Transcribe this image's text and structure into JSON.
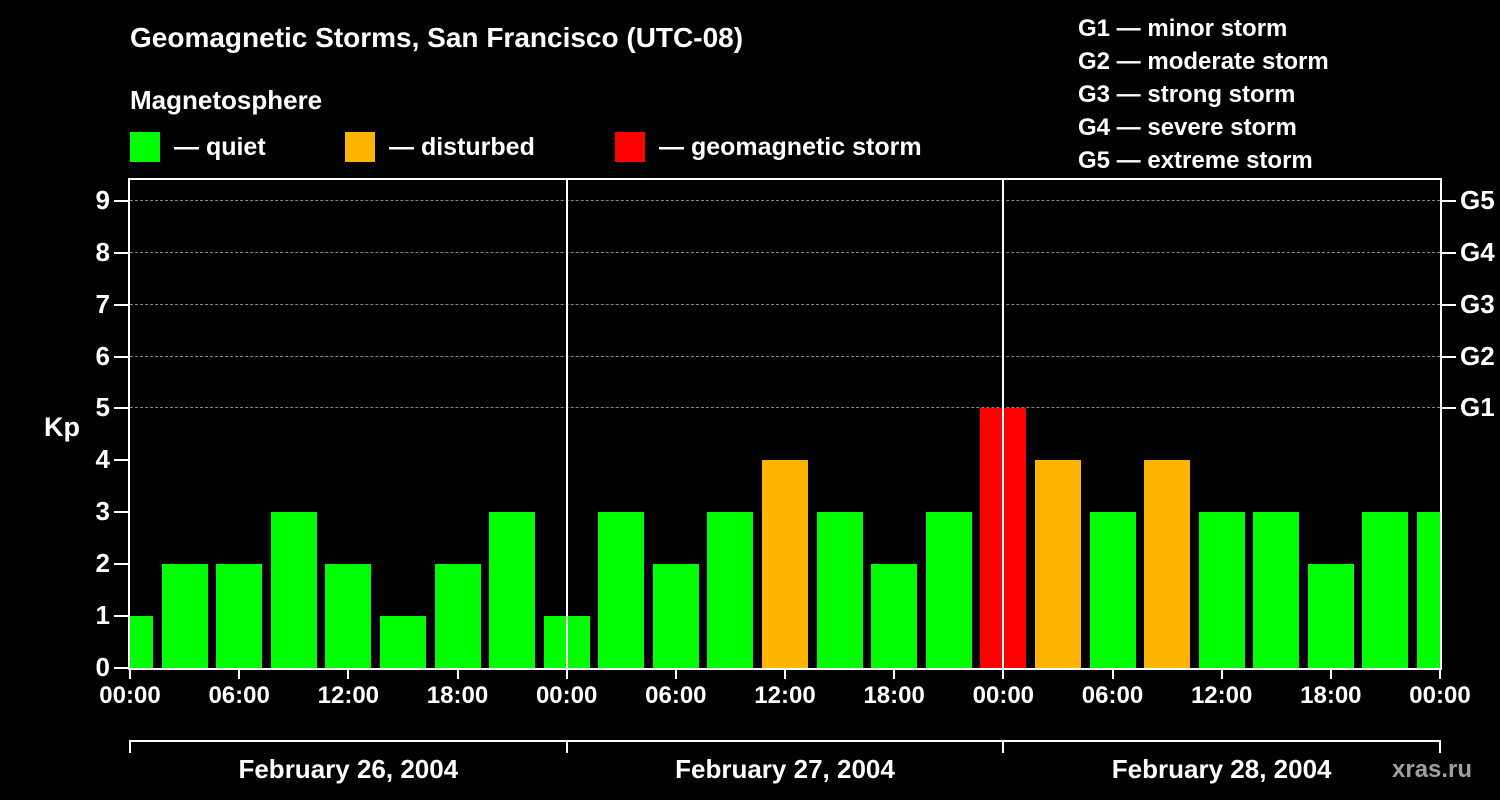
{
  "title": "Geomagnetic Storms, San Francisco (UTC-08)",
  "subtitle": "Magnetosphere",
  "watermark": "xras.ru",
  "legend": {
    "quiet": {
      "label": "— quiet",
      "color": "#00ff00"
    },
    "disturbed": {
      "label": "— disturbed",
      "color": "#ffb400"
    },
    "storm": {
      "label": "— geomagnetic storm",
      "color": "#ff0000"
    }
  },
  "g_scale": [
    {
      "name": "G1",
      "line": "G1 — minor storm",
      "kp": 5
    },
    {
      "name": "G2",
      "line": "G2 — moderate storm",
      "kp": 6
    },
    {
      "name": "G3",
      "line": "G3 — strong storm",
      "kp": 7
    },
    {
      "name": "G4",
      "line": "G4 — severe storm",
      "kp": 8
    },
    {
      "name": "G5",
      "line": "G5 — extreme storm",
      "kp": 9
    }
  ],
  "chart_data": {
    "type": "bar",
    "title": "Geomagnetic Storms, San Francisco (UTC-08)",
    "ylabel": "Kp",
    "ylim": [
      0,
      9.4
    ],
    "yticks": [
      0,
      1,
      2,
      3,
      4,
      5,
      6,
      7,
      8,
      9
    ],
    "grid_levels": [
      5,
      6,
      7,
      8,
      9
    ],
    "interval_hours": 3,
    "hours": [
      0,
      3,
      6,
      9,
      12,
      15,
      18,
      21,
      24,
      27,
      30,
      33,
      36,
      39,
      42,
      45,
      48,
      51,
      54,
      57,
      60,
      63,
      66,
      69,
      72
    ],
    "values": [
      1,
      2,
      2,
      3,
      2,
      1,
      2,
      3,
      1,
      3,
      2,
      3,
      4,
      3,
      2,
      3,
      5,
      4,
      3,
      4,
      3,
      3,
      2,
      3,
      3
    ],
    "color_rule": {
      "quiet_max": 3,
      "disturbed": 4,
      "storm_min": 5
    },
    "day_boundaries_hours": [
      0,
      24,
      48,
      72
    ],
    "days": [
      "February 26, 2004",
      "February 27, 2004",
      "February 28, 2004"
    ],
    "time_tick_labels": [
      "00:00",
      "06:00",
      "12:00",
      "18:00",
      "00:00",
      "06:00",
      "12:00",
      "18:00",
      "00:00",
      "06:00",
      "12:00",
      "18:00",
      "00:00"
    ],
    "legend_position": "top",
    "grid": "dashed horizontal at G-levels"
  }
}
